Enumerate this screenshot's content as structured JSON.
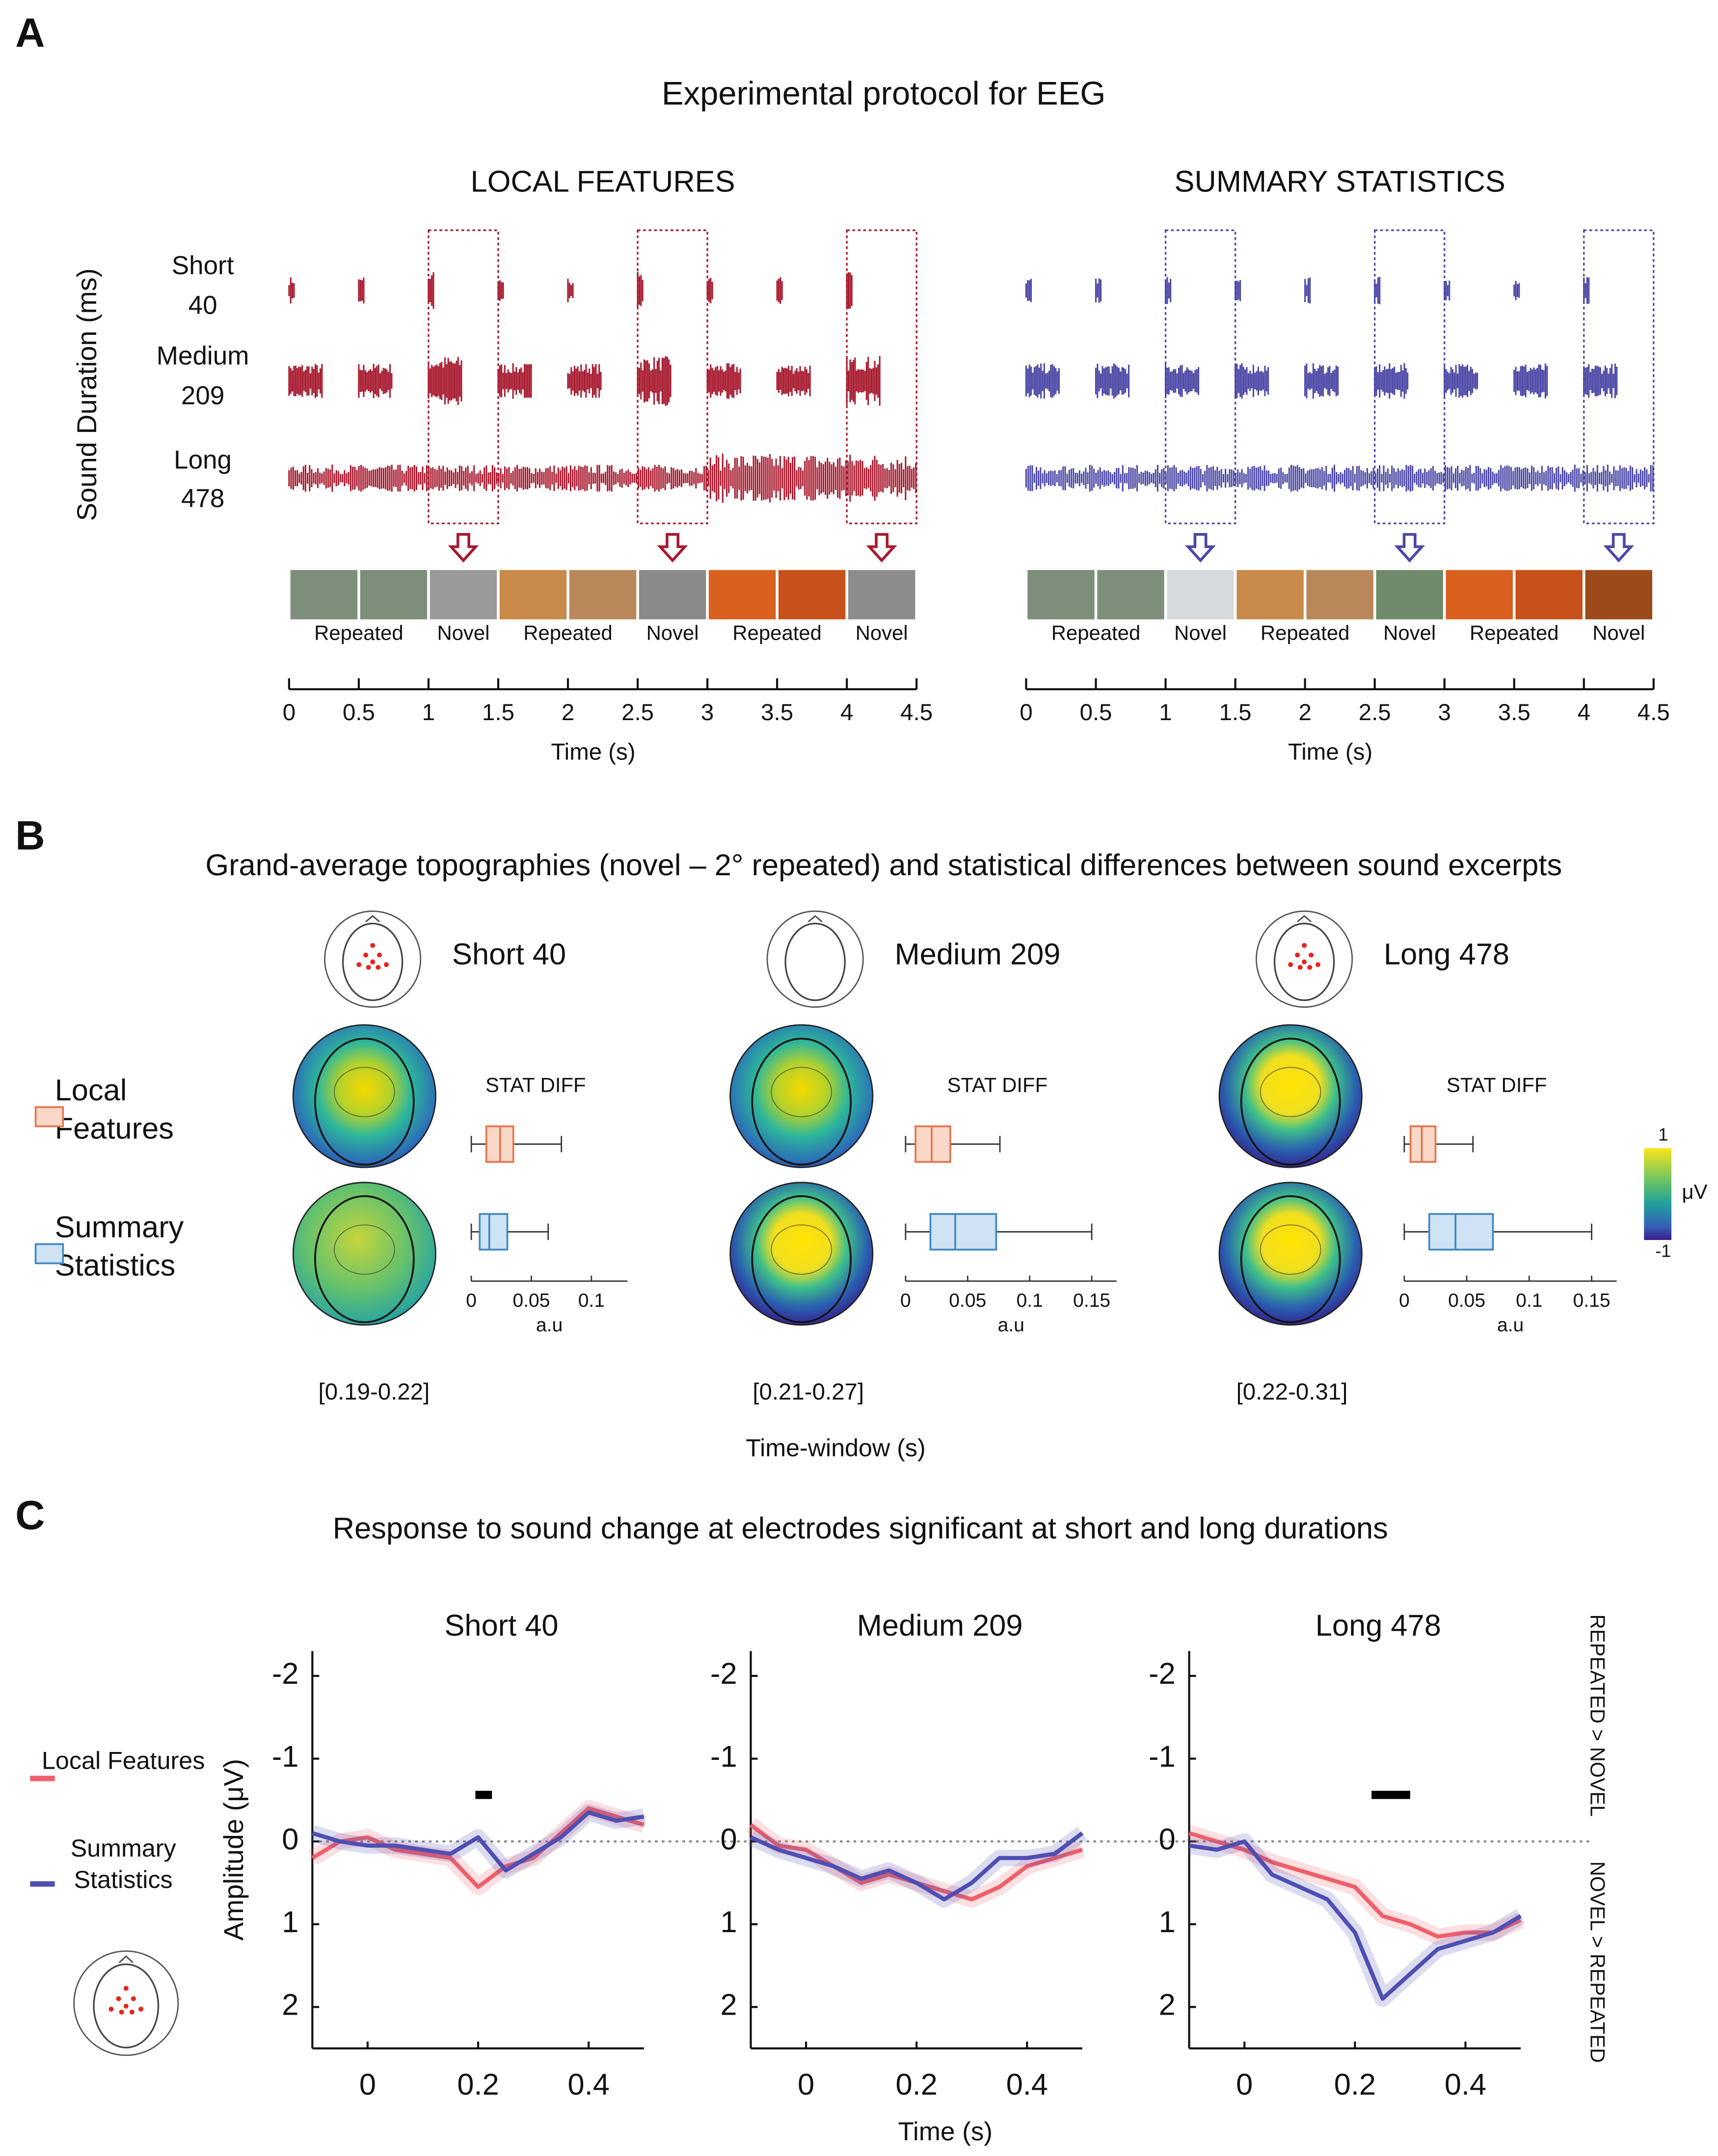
{
  "panel_a": {
    "letter": "A",
    "title": "Experimental protocol for EEG",
    "y_label": "Sound Duration (ms)",
    "durations": [
      {
        "name": "Short",
        "value": 40
      },
      {
        "name": "Medium",
        "value": 209
      },
      {
        "name": "Long",
        "value": 478
      }
    ],
    "conditions": [
      {
        "title": "LOCAL FEATURES",
        "color": "#a8192e",
        "labels": [
          "Repeated",
          "Novel",
          "Repeated",
          "Novel",
          "Repeated",
          "Novel"
        ]
      },
      {
        "title": "SUMMARY STATISTICS",
        "color": "#4b47a6",
        "labels": [
          "Repeated",
          "Novel",
          "Repeated",
          "Novel",
          "Repeated",
          "Novel"
        ]
      }
    ],
    "x_label": "Time (s)",
    "xlim": [
      0,
      4.5
    ],
    "xticks": [
      0,
      0.5,
      1,
      1.5,
      2,
      2.5,
      3,
      3.5,
      4,
      4.5
    ]
  },
  "panel_b": {
    "letter": "B",
    "title": "Grand-average topographies (novel – 2° repeated) and statistical differences between sound excerpts",
    "legend": [
      {
        "name": "Local Features",
        "color": "#e8724a",
        "fill": "#f9d8c8"
      },
      {
        "name": "Summary Statistics",
        "color": "#3d86c6",
        "fill": "#cfe3f5"
      }
    ],
    "box_label": "STAT DIFF",
    "x_label": "a.u",
    "time_label": "Time-window (s)",
    "colorbar": {
      "ticks": [
        1,
        -1
      ],
      "label": "μV",
      "lim": [
        -1,
        1
      ]
    },
    "columns": [
      {
        "title": "Short 40",
        "window": "[0.19-0.22]",
        "xlim": [
          0,
          0.13
        ],
        "xticks": [
          0,
          0.05,
          0.1
        ],
        "boxes": [
          {
            "whisker_low": 0,
            "q1": 0.0125,
            "median": 0.024,
            "q3": 0.035,
            "whisker_high": 0.075
          },
          {
            "whisker_low": 0,
            "q1": 0.007,
            "median": 0.015,
            "q3": 0.03,
            "whisker_high": 0.064
          }
        ]
      },
      {
        "title": "Medium 209",
        "window": "[0.21-0.27]",
        "xlim": [
          0,
          0.17
        ],
        "xticks": [
          0,
          0.05,
          0.1,
          0.15
        ],
        "boxes": [
          {
            "whisker_low": 0,
            "q1": 0.008,
            "median": 0.021,
            "q3": 0.036,
            "whisker_high": 0.076
          },
          {
            "whisker_low": 0,
            "q1": 0.02,
            "median": 0.04,
            "q3": 0.073,
            "whisker_high": 0.15
          }
        ]
      },
      {
        "title": "Long 478",
        "window": "[0.22-0.31]",
        "xlim": [
          0,
          0.17
        ],
        "xticks": [
          0,
          0.05,
          0.1,
          0.15
        ],
        "boxes": [
          {
            "whisker_low": 0,
            "q1": 0.005,
            "median": 0.014,
            "q3": 0.025,
            "whisker_high": 0.055
          },
          {
            "whisker_low": 0,
            "q1": 0.02,
            "median": 0.041,
            "q3": 0.071,
            "whisker_high": 0.15
          }
        ]
      }
    ]
  },
  "panel_c": {
    "letter": "C",
    "title": "Response to sound change at electrodes significant at short and long durations",
    "y_label": "Amplitude (μV)",
    "x_label": "Time (s)",
    "upper_label": "REPEATED > NOVEL",
    "lower_label": "NOVEL > REPEATED",
    "legend": [
      {
        "name": "Local Features",
        "color": "#ef5f6a"
      },
      {
        "name": "Summary Statistics",
        "color": "#4e4fb3"
      }
    ],
    "xlim": [
      -0.1,
      0.5
    ],
    "xticks": [
      0,
      0.2,
      0.4
    ],
    "ylim": [
      -2.3,
      2.5
    ],
    "yticks": [
      -2,
      -1,
      0,
      1,
      2
    ],
    "x": [
      -0.1,
      -0.05,
      0,
      0.05,
      0.1,
      0.15,
      0.2,
      0.25,
      0.3,
      0.35,
      0.4,
      0.45,
      0.5
    ],
    "plots": [
      {
        "title": "Short 40",
        "significant": [
          0.195,
          0.225
        ],
        "values": [
          [
            0.2,
            0.0,
            -0.05,
            0.1,
            0.15,
            0.2,
            0.55,
            0.3,
            0.2,
            -0.1,
            -0.4,
            -0.3,
            -0.2
          ],
          [
            -0.1,
            0.0,
            0.05,
            0.05,
            0.1,
            0.15,
            -0.05,
            0.35,
            0.15,
            -0.05,
            -0.35,
            -0.25,
            -0.3
          ]
        ]
      },
      {
        "title": "Medium 209",
        "values": [
          [
            -0.2,
            0.05,
            0.1,
            0.3,
            0.5,
            0.4,
            0.5,
            0.6,
            0.7,
            0.55,
            0.3,
            0.2,
            0.1
          ],
          [
            -0.05,
            0.1,
            0.2,
            0.3,
            0.45,
            0.35,
            0.5,
            0.7,
            0.5,
            0.2,
            0.2,
            0.15,
            -0.1
          ]
        ]
      },
      {
        "title": "Long 478",
        "significant": [
          0.23,
          0.3
        ],
        "values": [
          [
            -0.1,
            0.0,
            0.1,
            0.25,
            0.35,
            0.45,
            0.55,
            0.9,
            1.0,
            1.15,
            1.1,
            1.1,
            0.95
          ],
          [
            0.05,
            0.1,
            0.0,
            0.4,
            0.55,
            0.7,
            1.1,
            1.9,
            1.6,
            1.3,
            1.2,
            1.1,
            0.9
          ]
        ]
      }
    ]
  }
}
